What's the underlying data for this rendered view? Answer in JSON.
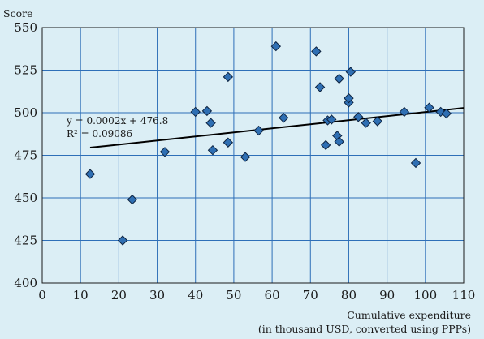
{
  "chart_data": {
    "type": "scatter",
    "ylabel": "Score",
    "xlabel_line1": "Cumulative expenditure",
    "xlabel_line2": "(in thousand USD, converted using PPPs)",
    "xlim": [
      0,
      110
    ],
    "ylim": [
      400,
      550
    ],
    "xticks": [
      0,
      10,
      20,
      30,
      40,
      50,
      60,
      70,
      80,
      90,
      100,
      110
    ],
    "yticks": [
      400,
      425,
      450,
      475,
      500,
      525,
      550
    ],
    "grid": true,
    "colors": {
      "background": "#dbeef5",
      "grid": "#2e6fb8",
      "marker": "#2f6fb3",
      "marker_edge": "#0d2340",
      "trend": "#000000"
    },
    "points": [
      {
        "x": 12.5,
        "y": 464
      },
      {
        "x": 21,
        "y": 425
      },
      {
        "x": 23.5,
        "y": 449
      },
      {
        "x": 32,
        "y": 477
      },
      {
        "x": 40,
        "y": 500.5
      },
      {
        "x": 43,
        "y": 501
      },
      {
        "x": 44,
        "y": 494
      },
      {
        "x": 44.5,
        "y": 478
      },
      {
        "x": 48.5,
        "y": 482.5
      },
      {
        "x": 48.5,
        "y": 521
      },
      {
        "x": 53,
        "y": 474
      },
      {
        "x": 56.5,
        "y": 489.5
      },
      {
        "x": 61,
        "y": 539
      },
      {
        "x": 63,
        "y": 497
      },
      {
        "x": 71.5,
        "y": 536
      },
      {
        "x": 72.5,
        "y": 515
      },
      {
        "x": 74,
        "y": 481
      },
      {
        "x": 74.5,
        "y": 495.5
      },
      {
        "x": 75.5,
        "y": 496
      },
      {
        "x": 77,
        "y": 486.5
      },
      {
        "x": 77.5,
        "y": 520
      },
      {
        "x": 77.5,
        "y": 483
      },
      {
        "x": 80,
        "y": 506
      },
      {
        "x": 80,
        "y": 508.5
      },
      {
        "x": 80.5,
        "y": 524
      },
      {
        "x": 82.5,
        "y": 497.5
      },
      {
        "x": 84.5,
        "y": 494
      },
      {
        "x": 87.5,
        "y": 495
      },
      {
        "x": 94.5,
        "y": 500.5
      },
      {
        "x": 97.5,
        "y": 470.5
      },
      {
        "x": 101,
        "y": 503
      },
      {
        "x": 104,
        "y": 500.5
      },
      {
        "x": 105.5,
        "y": 499.5
      }
    ],
    "trendline": {
      "equation": "y = 0.0002x + 476.8",
      "r_squared": "R² = 0.09086",
      "from": [
        12.5,
        479.5
      ],
      "to": [
        110,
        502.8
      ]
    }
  }
}
